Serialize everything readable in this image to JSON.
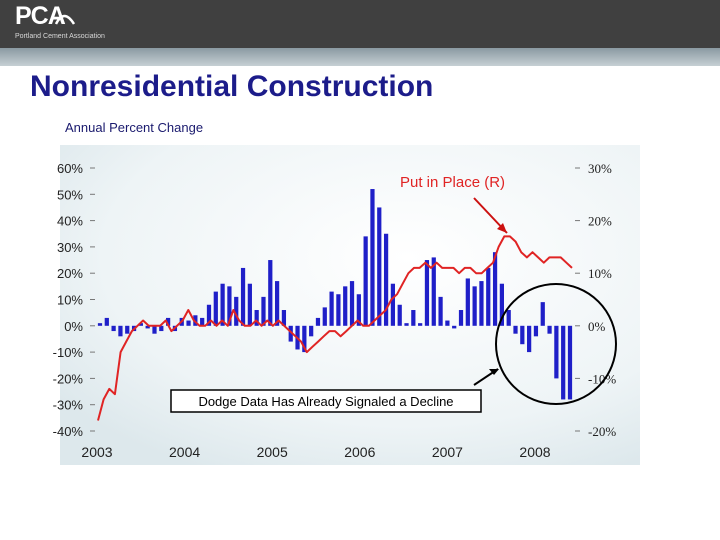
{
  "header": {
    "logo_text": "PCA",
    "logo_subtext": "Portland Cement Association"
  },
  "slide": {
    "title": "Nonresidential Construction",
    "subtitle": "Annual Percent Change"
  },
  "colors": {
    "title": "#1c1c8a",
    "bar": "#1f1fc8",
    "line": "#e02424",
    "header": "#404040"
  },
  "chart_data": {
    "type": "bar",
    "left_axis": {
      "ticks": [
        "60%",
        "50%",
        "40%",
        "30%",
        "20%",
        "10%",
        "0%",
        "-10%",
        "-20%",
        "-30%",
        "-40%"
      ],
      "range": [
        -40,
        60
      ]
    },
    "right_axis": {
      "ticks": [
        "30%",
        "20%",
        "10%",
        "0%",
        "-10%",
        "-20%"
      ],
      "range": [
        -20,
        30
      ]
    },
    "x_ticks": [
      "2003",
      "2004",
      "2005",
      "2006",
      "2007",
      "2008"
    ],
    "series": [
      {
        "name": "Dodge",
        "kind": "bar",
        "axis": "left",
        "values": [
          1,
          3,
          -2,
          -4,
          -3,
          -2,
          1,
          -1,
          -3,
          -2,
          3,
          -2,
          3,
          2,
          4,
          3,
          8,
          13,
          16,
          15,
          11,
          22,
          16,
          6,
          11,
          25,
          17,
          6,
          -6,
          -9,
          -10,
          -4,
          3,
          7,
          13,
          12,
          15,
          17,
          12,
          34,
          52,
          45,
          35,
          16,
          8,
          1,
          6,
          1,
          25,
          26,
          11,
          2,
          -1,
          6,
          18,
          15,
          17,
          22,
          28,
          16,
          6,
          -3,
          -7,
          -10,
          -4,
          9,
          -3,
          -20,
          -28,
          -28
        ]
      },
      {
        "name": "Put in Place (R)",
        "kind": "line",
        "axis": "right",
        "values": [
          -18,
          -14,
          -12,
          -13,
          -5,
          -3,
          -1,
          0,
          1,
          0,
          0,
          0,
          1,
          -1,
          0,
          1,
          3,
          1,
          0,
          0,
          1,
          0,
          1,
          0,
          3,
          1,
          0,
          0,
          1,
          0,
          1,
          0,
          1,
          0,
          -1,
          -2,
          -3,
          -5,
          -4,
          -3,
          -2,
          -1,
          -1,
          -2,
          -1,
          0,
          1,
          0,
          0,
          1,
          2,
          3,
          5,
          6,
          8,
          10,
          11,
          11,
          12,
          11,
          12,
          11,
          11,
          11,
          10,
          11,
          11,
          10,
          10,
          11,
          12,
          15,
          17,
          17,
          16,
          14,
          13,
          14,
          13,
          12,
          13,
          13,
          13,
          12,
          11
        ]
      }
    ],
    "annotations": [
      "Put in Place (R)",
      "Dodge Data Has Already Signaled a Decline"
    ]
  }
}
